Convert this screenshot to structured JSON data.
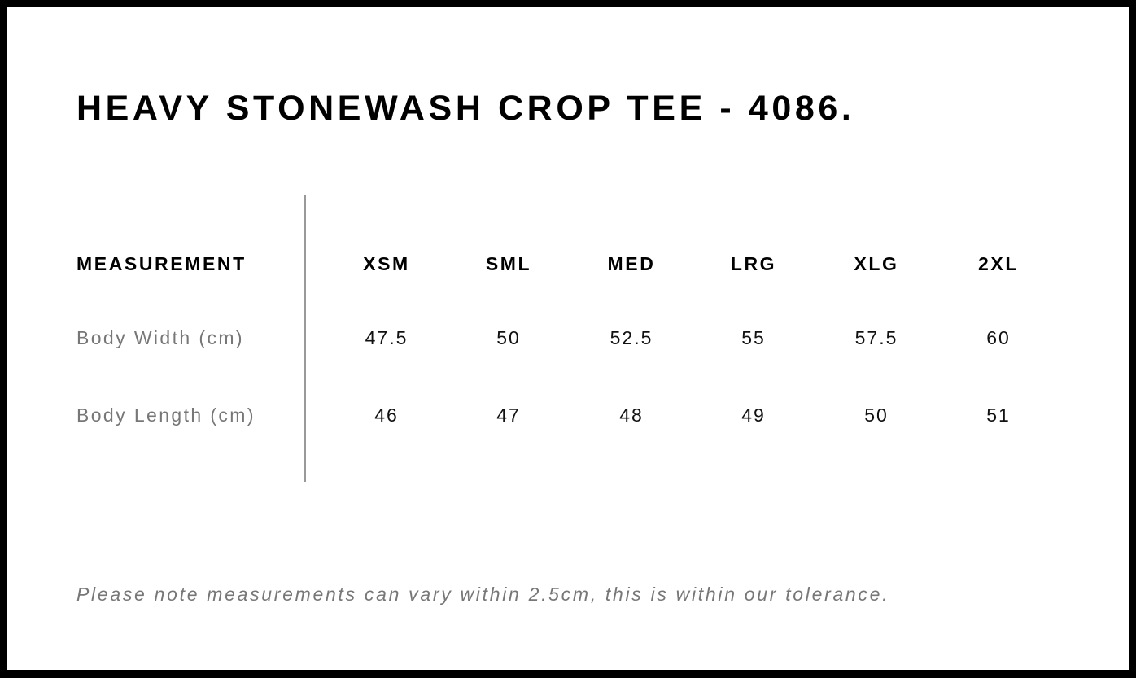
{
  "title": "HEAVY STONEWASH CROP TEE - 4086.",
  "table": {
    "header_label": "MEASUREMENT",
    "sizes": [
      "XSM",
      "SML",
      "MED",
      "LRG",
      "XLG",
      "2XL"
    ],
    "rows": [
      {
        "label": "Body Width (cm)",
        "values": [
          "47.5",
          "50",
          "52.5",
          "55",
          "57.5",
          "60"
        ]
      },
      {
        "label": "Body Length (cm)",
        "values": [
          "46",
          "47",
          "48",
          "49",
          "50",
          "51"
        ]
      }
    ]
  },
  "note": "Please note measurements can vary within 2.5cm, this is within our tolerance."
}
